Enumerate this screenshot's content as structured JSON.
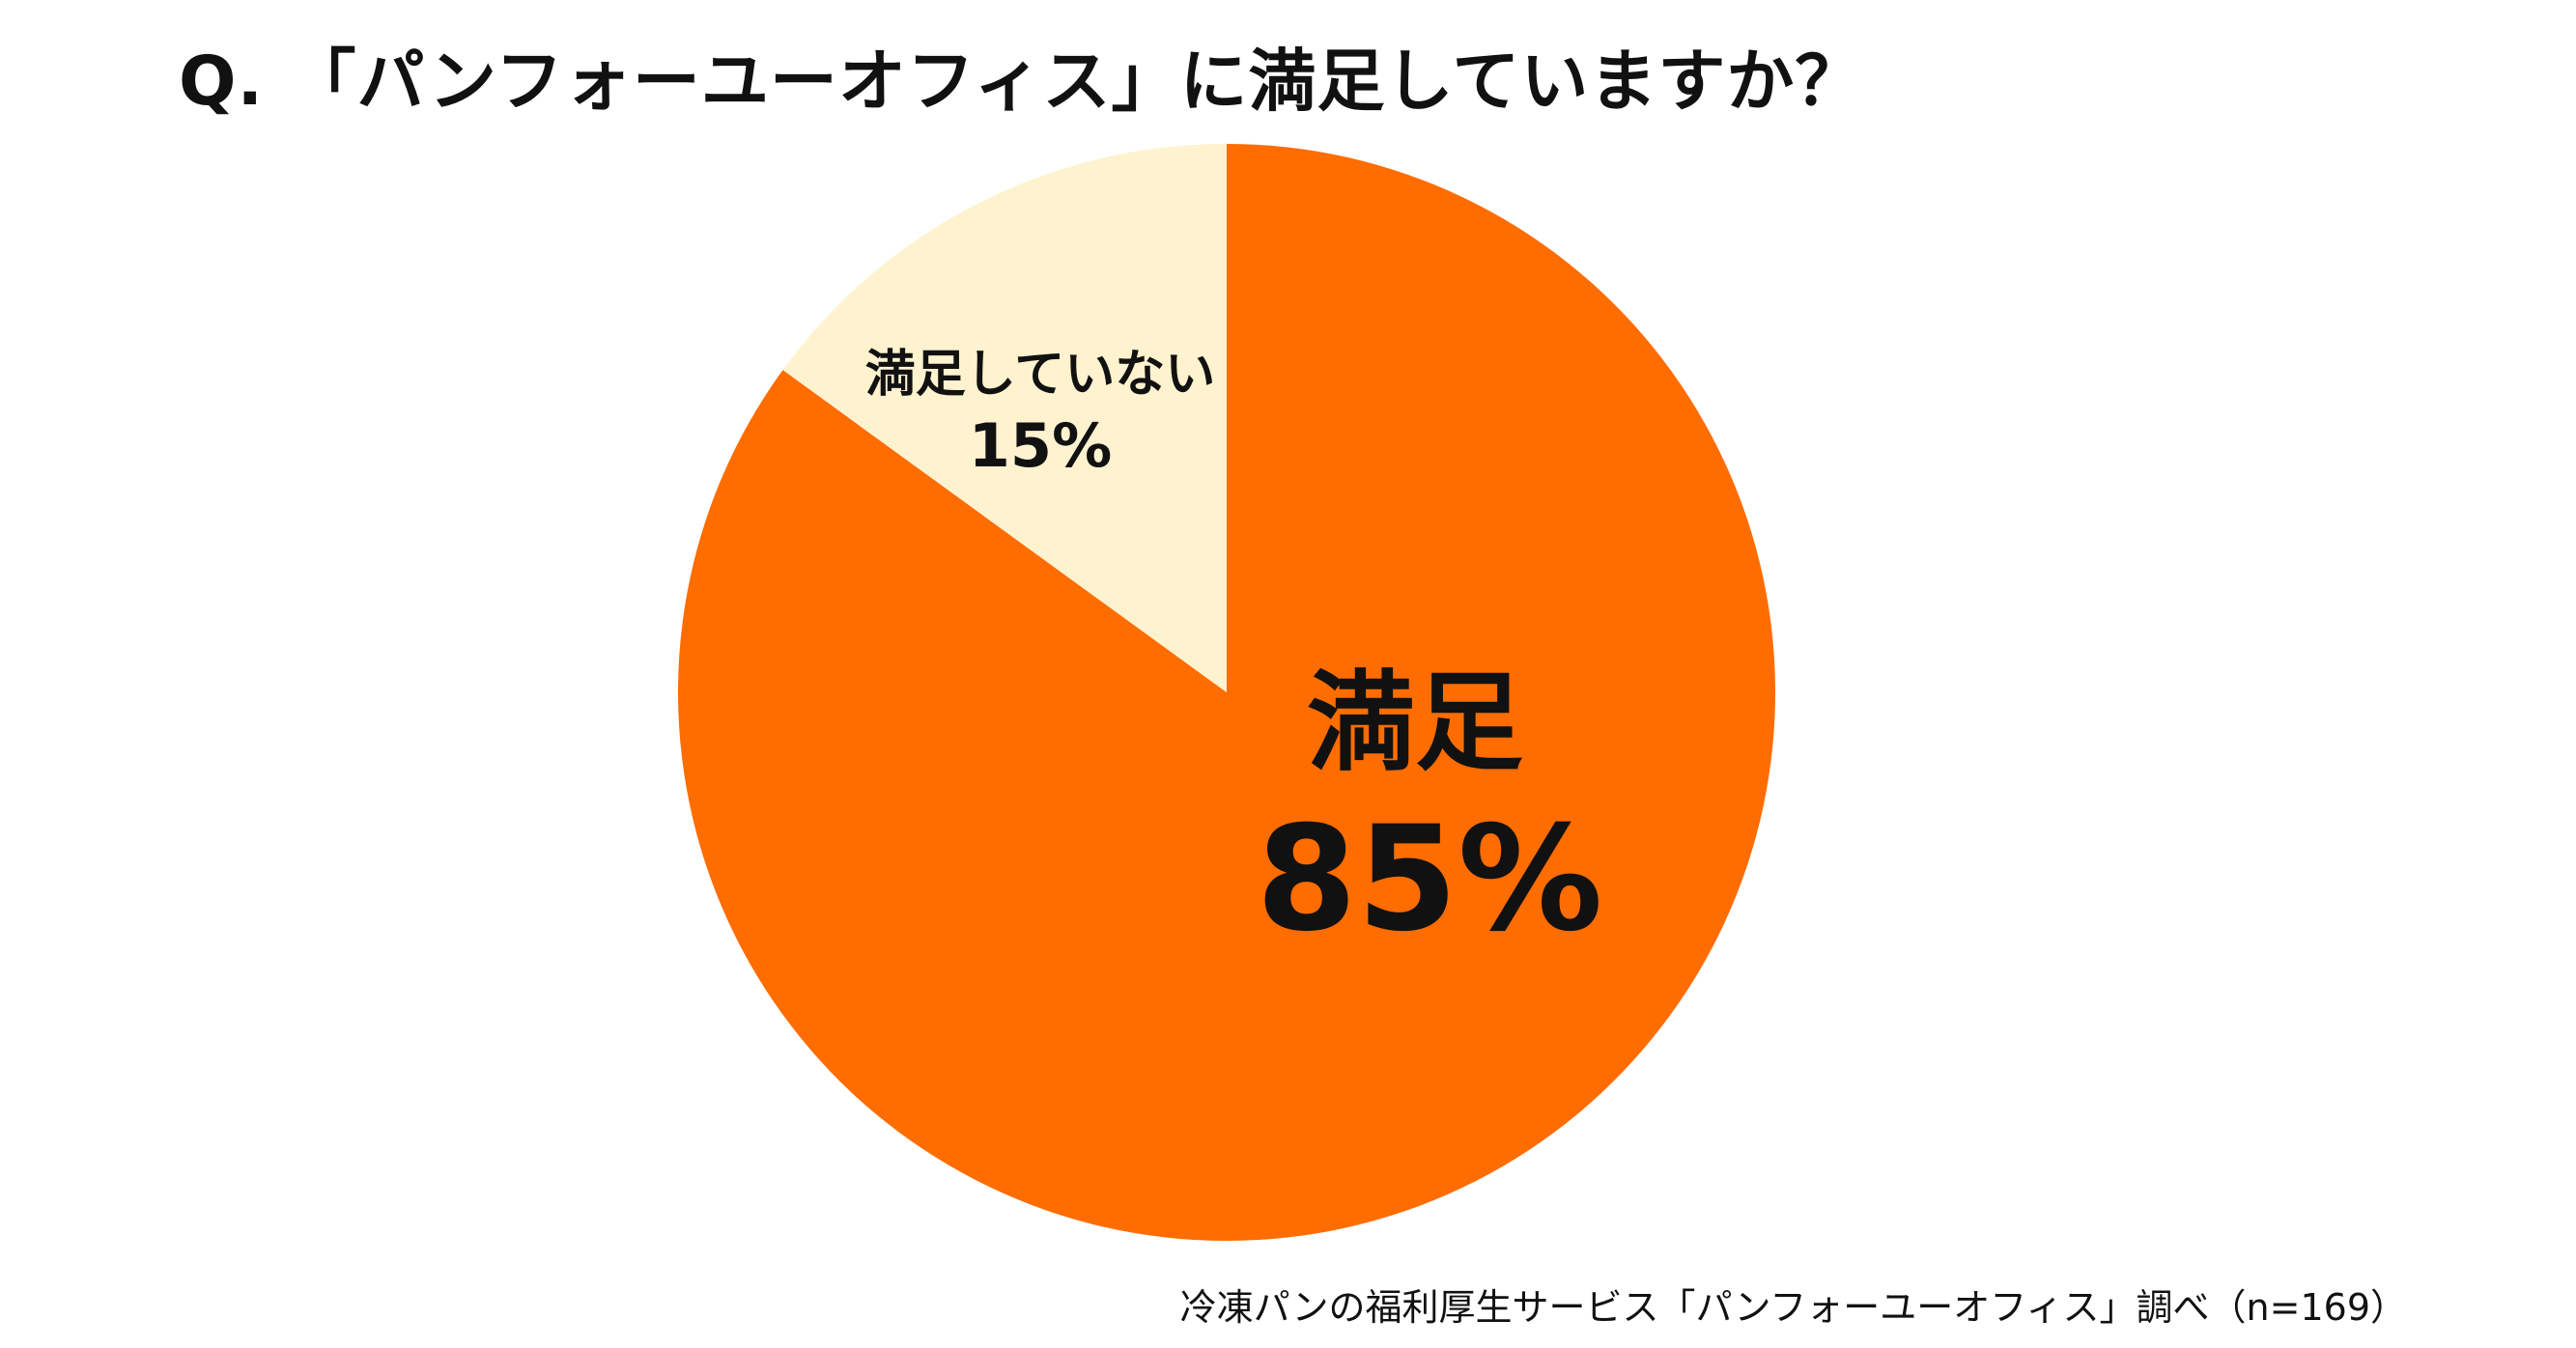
{
  "chart_data": {
    "type": "pie",
    "title": "Q. 「パンフォーユーオフィス」に満足していますか？",
    "slices": [
      {
        "label": "満足",
        "value": 85,
        "value_label": "85%",
        "color": "#ff6c00"
      },
      {
        "label": "満足していない",
        "value": 15,
        "value_label": "15%",
        "color": "#fff2cf"
      }
    ],
    "start_angle_deg": 0,
    "direction": "clockwise",
    "legend": "none"
  },
  "source": "冷凍パンの福利厚生サービス「パンフォーユーオフィス」調べ（n=169）"
}
